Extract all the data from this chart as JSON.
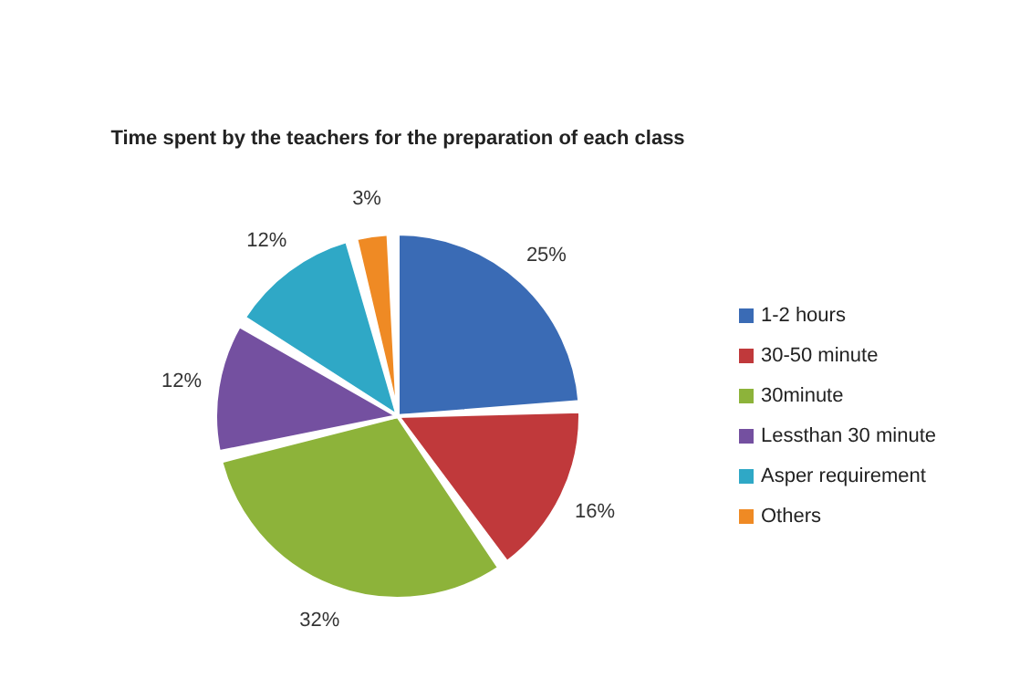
{
  "chart_data": {
    "type": "pie",
    "title": "Time spent by the teachers for the preparation of each class",
    "categories": [
      "1-2 hours",
      "30-50 minute",
      "30minute",
      "Lessthan 30 minute",
      "Asper requirement",
      "Others"
    ],
    "values": [
      25,
      16,
      32,
      12,
      12,
      3
    ],
    "value_labels": [
      "25%",
      "16%",
      "32%",
      "12%",
      "12%",
      "3%"
    ],
    "colors": [
      "#3a6bb5",
      "#c0393b",
      "#8db33a",
      "#7450a0",
      "#2fa8c6",
      "#ef8a24"
    ],
    "legend": "right"
  }
}
